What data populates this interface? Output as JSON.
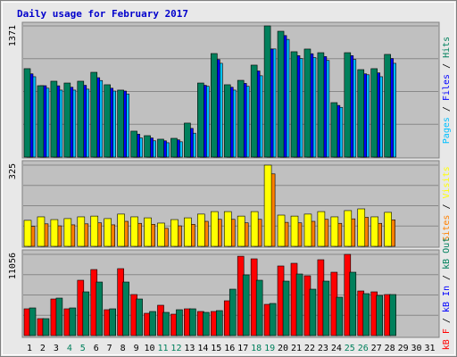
{
  "chart_data": {
    "type": "bar",
    "title": "Daily usage for February 2017",
    "categories": [
      "1",
      "2",
      "3",
      "4",
      "5",
      "6",
      "7",
      "8",
      "9",
      "10",
      "11",
      "12",
      "13",
      "14",
      "15",
      "16",
      "17",
      "18",
      "19",
      "20",
      "21",
      "22",
      "23",
      "24",
      "25",
      "26",
      "27",
      "28",
      "29",
      "30",
      "31"
    ],
    "weekend_days": [
      4,
      5,
      11,
      12,
      18,
      19,
      25,
      26
    ],
    "weekday_color": "#000000",
    "weekend_color": "#00805c",
    "panels": [
      {
        "ylim": [
          0,
          1371
        ],
        "series": [
          {
            "name": "Pages",
            "color": "#00c0ff",
            "values": [
              840,
              720,
              700,
              700,
              710,
              800,
              690,
              660,
              200,
              170,
              150,
              160,
              250,
              740,
              980,
              700,
              740,
              850,
              1130,
              1230,
              1030,
              1040,
              1010,
              520,
              1020,
              860,
              840,
              980,
              null,
              null,
              null
            ]
          },
          {
            "name": "Files",
            "color": "#0000ff",
            "values": [
              870,
              746,
              745,
              730,
              750,
              830,
              720,
              690,
              240,
              200,
              170,
              180,
              300,
              750,
              1020,
              730,
              770,
              900,
              1129,
              1270,
              1060,
              1080,
              1050,
              540,
              1060,
              870,
              880,
              1030,
              null,
              null,
              null
            ]
          },
          {
            "name": "Hits",
            "color": "#00805c",
            "values": [
              924,
              746,
              793,
              774,
              793,
              886,
              756,
              700,
              271,
              224,
              187,
              196,
              355,
              774,
              1082,
              756,
              802,
              961,
              1371,
              1315,
              1101,
              1129,
              1091,
              569,
              1091,
              914,
              924,
              1073,
              null,
              null,
              null
            ]
          }
        ]
      },
      {
        "ylim": [
          0,
          325
        ],
        "series": [
          {
            "name": "Sites",
            "color": "#ff8000",
            "values": [
              80,
              90,
              82,
              86,
              90,
              94,
              86,
              100,
              92,
              88,
              72,
              82,
              88,
              100,
              108,
              108,
              94,
              108,
              290,
              96,
              94,
              100,
              108,
              92,
              110,
              116,
              92,
              106,
              null,
              null,
              null
            ]
          },
          {
            "name": "Visits",
            "color": "#ffff00",
            "values": [
              104,
              118,
              107,
              111,
              118,
              121,
              111,
              129,
              118,
              114,
              93,
              107,
              114,
              129,
              139,
              139,
              121,
              139,
              325,
              125,
              121,
              129,
              139,
              118,
              143,
              150,
              118,
              136,
              null,
              null,
              null
            ]
          }
        ]
      },
      {
        "ylim": [
          0,
          11056
        ],
        "series": [
          {
            "name": "kB F",
            "color": "#ff0000",
            "values": [
              3645,
              2308,
              4981,
              3645,
              7533,
              8990,
              3523,
              9112,
              5589,
              3037,
              4131,
              2916,
              3645,
              3280,
              3280,
              4738,
              10800,
              10448,
              4252,
              9477,
              9841,
              8140,
              10327,
              8626,
              11056,
              6075,
              5953,
              5589,
              null,
              null,
              null
            ]
          },
          {
            "name": "kB In",
            "color": "#0000ff",
            "values": [
              null,
              null,
              null,
              null,
              null,
              null,
              null,
              null,
              null,
              null,
              null,
              null,
              null,
              null,
              null,
              null,
              null,
              null,
              null,
              null,
              null,
              null,
              null,
              null,
              null,
              null,
              null,
              null,
              null,
              null,
              null
            ]
          },
          {
            "name": "kB Out",
            "color": "#00805c",
            "values": [
              3766,
              2308,
              5103,
              3766,
              5953,
              7290,
              3645,
              7290,
              4981,
              3280,
              3159,
              3523,
              3645,
              3159,
              3402,
              6318,
              8262,
              7533,
              4374,
              7411,
              8383,
              6318,
              7411,
              5224,
              8626,
              5710,
              5467,
              5589,
              null,
              null,
              null
            ]
          }
        ]
      }
    ]
  }
}
